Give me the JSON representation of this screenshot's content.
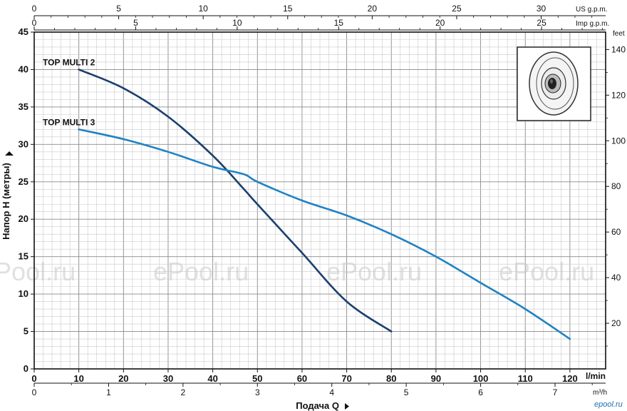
{
  "chart_data": {
    "type": "line",
    "x_axis_label": "Подача Q",
    "x_unit_main": "l/min",
    "x_unit_m3h": "m³/h",
    "x_unit_us": "US g.p.m.",
    "x_unit_imp": "Imp g.p.m.",
    "y_axis_label": "Напор H (метры)",
    "y_unit_right": "feet",
    "xlim": [
      0,
      128
    ],
    "ylim": [
      0,
      45
    ],
    "grid": true,
    "x_ticks_lmin": [
      "0",
      "10",
      "20",
      "30",
      "40",
      "50",
      "60",
      "70",
      "80",
      "90",
      "100",
      "110",
      "120"
    ],
    "x_ticks_m3h": [
      "0",
      "1",
      "2",
      "3",
      "4",
      "5",
      "6",
      "7"
    ],
    "x_ticks_us": [
      "0",
      "5",
      "10",
      "15",
      "20",
      "25",
      "30"
    ],
    "x_ticks_imp": [
      "0",
      "5",
      "10",
      "15",
      "20",
      "25"
    ],
    "y_ticks_m": [
      "0",
      "5",
      "10",
      "15",
      "20",
      "25",
      "30",
      "35",
      "40",
      "45"
    ],
    "y_ticks_ft": [
      "20",
      "40",
      "60",
      "80",
      "100",
      "120",
      "140"
    ],
    "series": [
      {
        "name": "TOP MULTI 2",
        "color": "#1b3f6e",
        "x": [
          10,
          20,
          30,
          40,
          47,
          50,
          60,
          70,
          80
        ],
        "y": [
          40,
          37.5,
          33.7,
          28.5,
          24,
          22,
          15.5,
          9,
          5
        ]
      },
      {
        "name": "TOP MULTI 3",
        "color": "#1f82c3",
        "x": [
          10,
          20,
          30,
          40,
          47,
          50,
          60,
          70,
          80,
          90,
          100,
          110,
          120
        ],
        "y": [
          32,
          30.7,
          29,
          27,
          26,
          25,
          22.5,
          20.5,
          18,
          15,
          11.5,
          8,
          4
        ]
      }
    ]
  },
  "watermarks": [
    "ePool.ru",
    "ePool.ru",
    "ePool.ru",
    "ePool.ru"
  ],
  "logo": "epool.ru"
}
